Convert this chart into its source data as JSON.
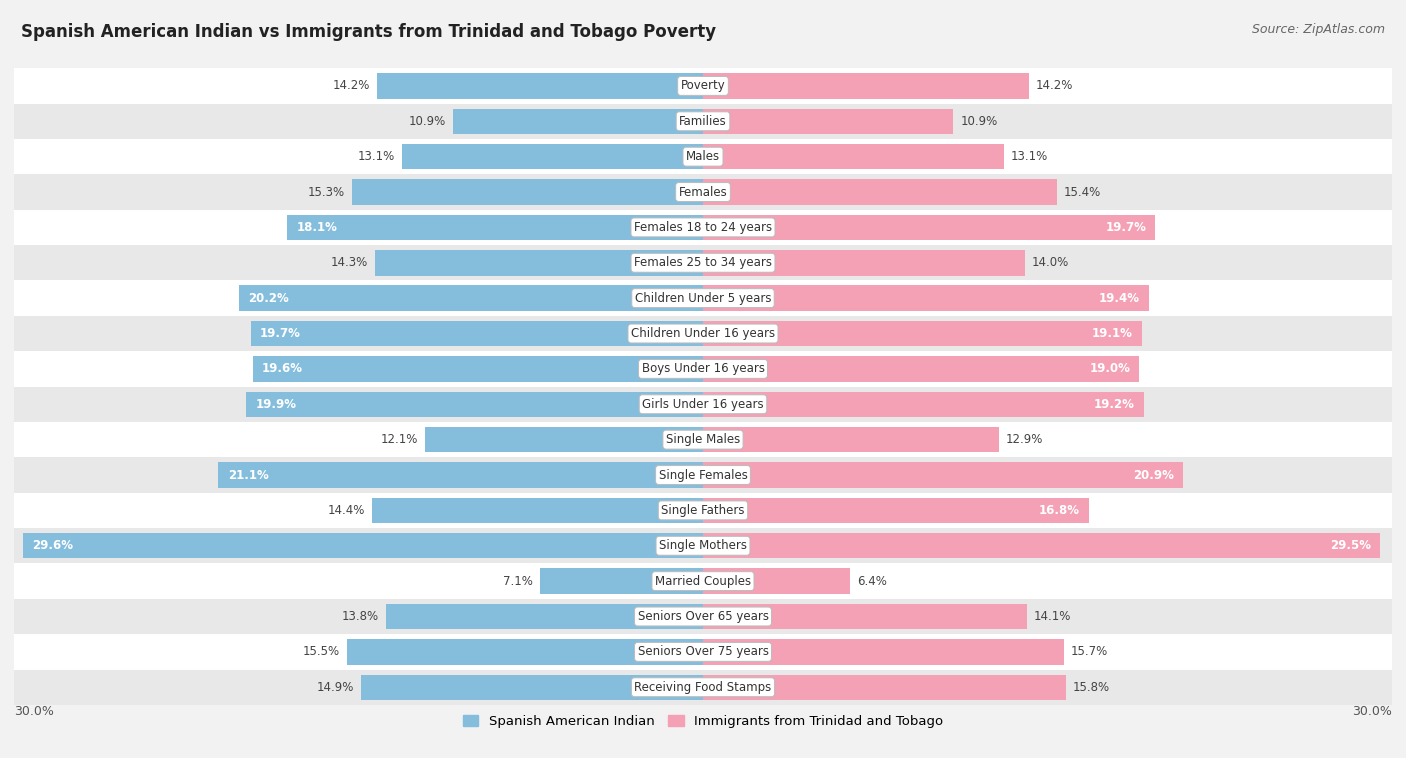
{
  "title": "Spanish American Indian vs Immigrants from Trinidad and Tobago Poverty",
  "source": "Source: ZipAtlas.com",
  "categories": [
    "Poverty",
    "Families",
    "Males",
    "Females",
    "Females 18 to 24 years",
    "Females 25 to 34 years",
    "Children Under 5 years",
    "Children Under 16 years",
    "Boys Under 16 years",
    "Girls Under 16 years",
    "Single Males",
    "Single Females",
    "Single Fathers",
    "Single Mothers",
    "Married Couples",
    "Seniors Over 65 years",
    "Seniors Over 75 years",
    "Receiving Food Stamps"
  ],
  "left_values": [
    14.2,
    10.9,
    13.1,
    15.3,
    18.1,
    14.3,
    20.2,
    19.7,
    19.6,
    19.9,
    12.1,
    21.1,
    14.4,
    29.6,
    7.1,
    13.8,
    15.5,
    14.9
  ],
  "right_values": [
    14.2,
    10.9,
    13.1,
    15.4,
    19.7,
    14.0,
    19.4,
    19.1,
    19.0,
    19.2,
    12.9,
    20.9,
    16.8,
    29.5,
    6.4,
    14.1,
    15.7,
    15.8
  ],
  "left_color": "#85BEDD",
  "right_color": "#F4A0B5",
  "left_label": "Spanish American Indian",
  "right_label": "Immigrants from Trinidad and Tobago",
  "axis_max": 30.0,
  "bg_color": "#f2f2f2",
  "row_light": "#ffffff",
  "row_dark": "#e8e8e8",
  "title_fontsize": 12,
  "source_fontsize": 9,
  "label_fontsize": 8.5,
  "value_fontsize": 8.5,
  "white_text_threshold": 16.5
}
